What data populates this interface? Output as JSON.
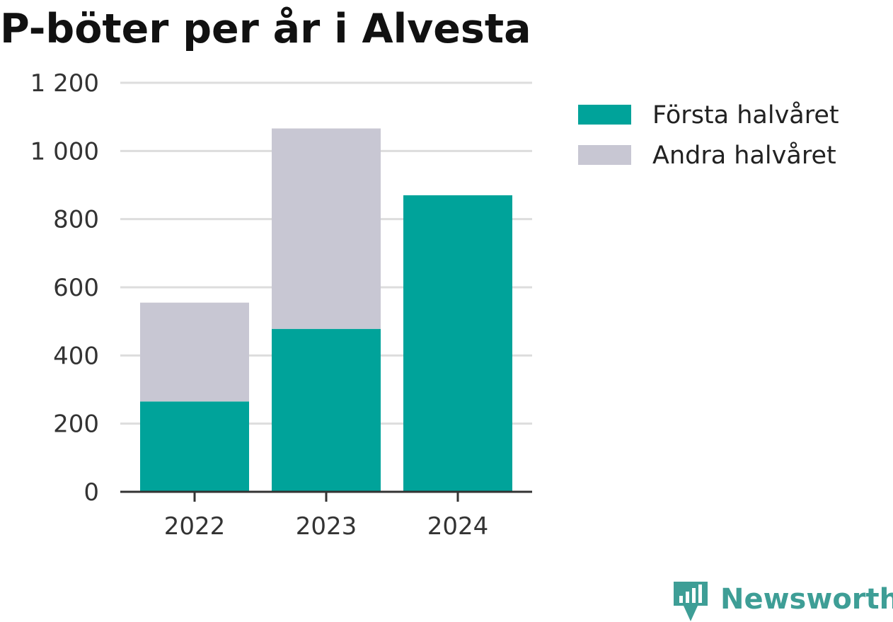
{
  "chart_data": {
    "type": "bar",
    "stacked": true,
    "title": "P-böter per år i Alvesta",
    "categories": [
      "2022",
      "2023",
      "2024"
    ],
    "series": [
      {
        "name": "Första halvåret",
        "values": [
          265,
          478,
          870
        ],
        "color": "#00a39a"
      },
      {
        "name": "Andra halvåret",
        "values": [
          290,
          588,
          0
        ],
        "color": "#c8c7d3"
      }
    ],
    "ylim": [
      0,
      1200
    ],
    "yticks": [
      0,
      200,
      400,
      600,
      800,
      1000,
      1200
    ],
    "ytick_labels": [
      "0",
      "200",
      "400",
      "600",
      "800",
      "1 000",
      "1 200"
    ],
    "grid": true,
    "legend_position": "right"
  },
  "brand": {
    "name": "Newsworthy",
    "icon": "newsworthy-logo-icon",
    "color": "#3e9e96"
  }
}
